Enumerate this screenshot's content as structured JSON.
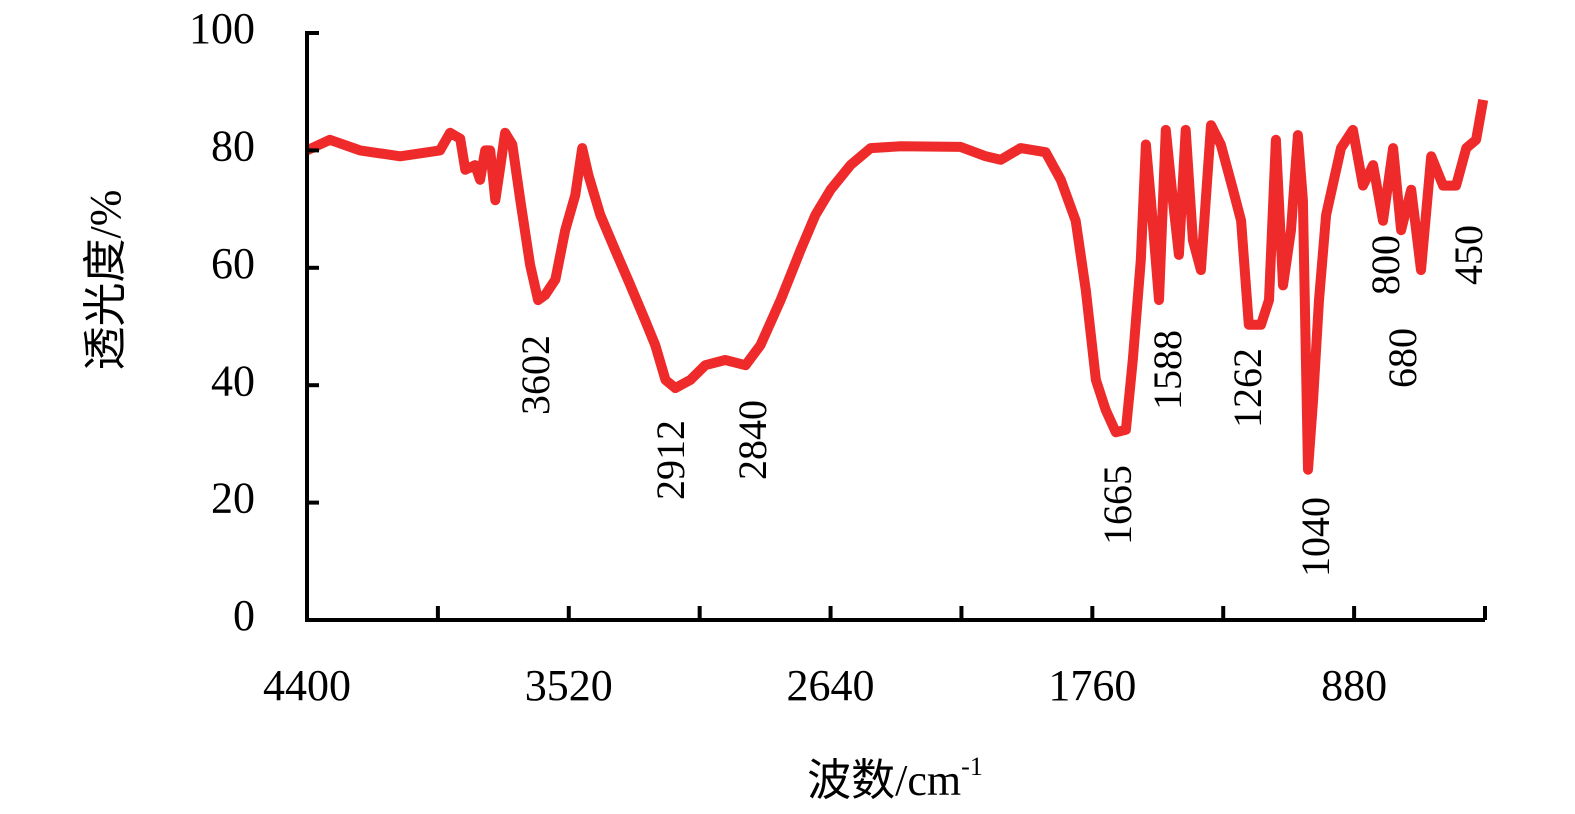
{
  "chart_data": {
    "type": "line",
    "xlabel": {
      "text": "波数/cm",
      "superscript": "-1"
    },
    "ylabel": "透光度/%",
    "xlim": [
      4400,
      440
    ],
    "ylim": [
      0,
      100
    ],
    "xticks": [
      4400,
      3520,
      2640,
      1760,
      880
    ],
    "xminorticks": [
      3960,
      3080,
      2200,
      1320,
      440
    ],
    "yticks": [
      0,
      20,
      40,
      60,
      80,
      100
    ],
    "series": [
      {
        "color": "#ee2a2a",
        "x": [
          4400,
          4323,
          4222,
          4087,
          3953,
          3919,
          3885,
          3868,
          3835,
          3818,
          3801,
          3784,
          3767,
          3751,
          3734,
          3710,
          3683,
          3650,
          3623,
          3599,
          3565,
          3532,
          3498,
          3475,
          3454,
          3414,
          3364,
          3313,
          3263,
          3229,
          3195,
          3162,
          3111,
          3061,
          2994,
          2926,
          2876,
          2808,
          2741,
          2691,
          2640,
          2573,
          2505,
          2404,
          2203,
          2118,
          2068,
          2001,
          1917,
          1866,
          1816,
          1782,
          1748,
          1715,
          1681,
          1647,
          1624,
          1597,
          1580,
          1563,
          1536,
          1513,
          1489,
          1469,
          1446,
          1422,
          1395,
          1361,
          1328,
          1287,
          1260,
          1234,
          1193,
          1166,
          1143,
          1119,
          1092,
          1069,
          1052,
          1035,
          1018,
          998,
          974,
          924,
          884,
          850,
          816,
          783,
          749,
          722,
          688,
          655,
          621,
          581,
          537,
          503,
          470,
          446
        ],
        "values": [
          80,
          81.8,
          80,
          79,
          80,
          83,
          82,
          76.7,
          77.5,
          75,
          80,
          80,
          71.5,
          77,
          83,
          81,
          71.5,
          60.5,
          54.5,
          55.4,
          58,
          66.4,
          72.4,
          80.4,
          75.8,
          69,
          63,
          57,
          51,
          46.8,
          40.9,
          39.5,
          40.9,
          43.4,
          44.3,
          43.4,
          46.8,
          54.5,
          63,
          69,
          73.3,
          77.5,
          80.4,
          80.7,
          80.6,
          79,
          78.4,
          80.4,
          79.7,
          75,
          68,
          56.2,
          40.9,
          35.8,
          32,
          32.4,
          44.3,
          61.3,
          81,
          71.5,
          54.5,
          83.5,
          71.5,
          62.2,
          83.5,
          64.7,
          59.6,
          84.3,
          81,
          73.3,
          68,
          50.3,
          50.3,
          54.5,
          81.8,
          57,
          66.4,
          82.6,
          71.5,
          25.6,
          37.5,
          54.5,
          69,
          80.4,
          83.5,
          74,
          77.5,
          68,
          80.4,
          66.4,
          73.3,
          59.6,
          79,
          74,
          74,
          80.4,
          81.8,
          88.6
        ]
      }
    ],
    "annotations": [
      "3602",
      "2912",
      "2840",
      "1665",
      "1588",
      "1262",
      "1040",
      "800",
      "680",
      "450"
    ]
  }
}
